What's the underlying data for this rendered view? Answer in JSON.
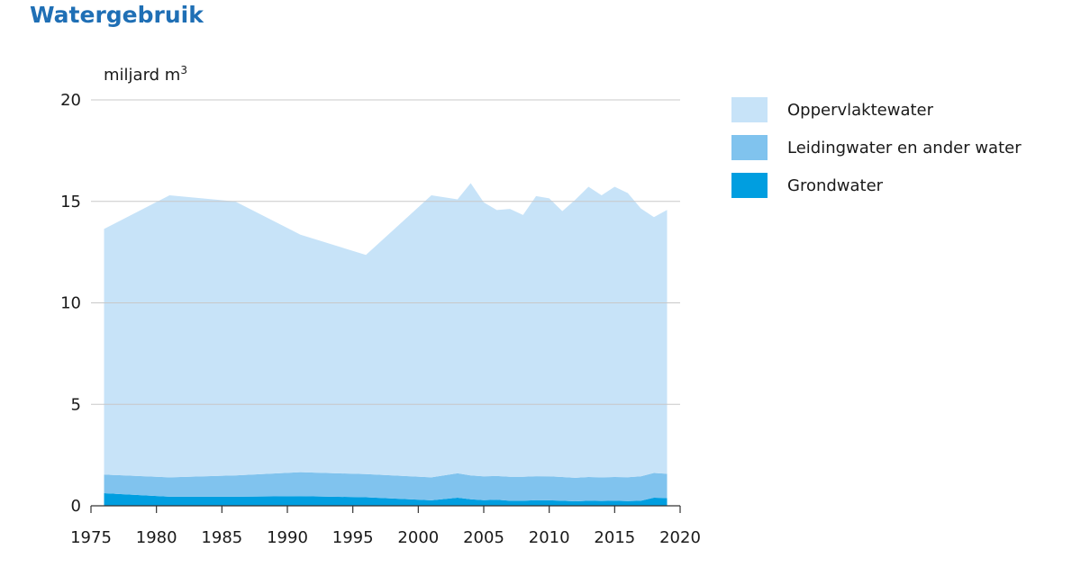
{
  "chart_data": {
    "type": "area",
    "stacked": true,
    "title": "Watergebruik",
    "ylabel": "miljard m",
    "ylabel_sup": "3",
    "xlim": [
      1975,
      2020
    ],
    "ylim": [
      0,
      20
    ],
    "xticks": [
      "1975",
      "1980",
      "1985",
      "1990",
      "1995",
      "2000",
      "2005",
      "2010",
      "2015",
      "2020"
    ],
    "yticks": [
      "0",
      "5",
      "10",
      "15",
      "20"
    ],
    "grid": true,
    "legend_position": "right",
    "x": [
      1976,
      1981,
      1986,
      1991,
      1996,
      2001,
      2003,
      2004,
      2005,
      2006,
      2007,
      2008,
      2009,
      2010,
      2011,
      2012,
      2013,
      2014,
      2015,
      2016,
      2017,
      2018,
      2019
    ],
    "series": [
      {
        "name": "Grondwater",
        "color": "#009ee0",
        "values": [
          0.62,
          0.45,
          0.45,
          0.48,
          0.42,
          0.27,
          0.4,
          0.32,
          0.28,
          0.3,
          0.25,
          0.25,
          0.28,
          0.27,
          0.25,
          0.22,
          0.25,
          0.24,
          0.25,
          0.23,
          0.25,
          0.4,
          0.38
        ]
      },
      {
        "name": "Leidingwater en ander water",
        "color": "#80c3ee",
        "values": [
          0.92,
          0.95,
          1.05,
          1.18,
          1.14,
          1.13,
          1.2,
          1.18,
          1.17,
          1.17,
          1.18,
          1.18,
          1.18,
          1.18,
          1.17,
          1.16,
          1.17,
          1.16,
          1.17,
          1.18,
          1.2,
          1.22,
          1.2
        ]
      },
      {
        "name": "Oppervlaktewater",
        "color": "#c7e3f8",
        "values": [
          12.1,
          13.9,
          13.5,
          11.7,
          10.8,
          13.9,
          13.5,
          14.4,
          13.5,
          13.1,
          13.2,
          12.9,
          13.8,
          13.7,
          13.1,
          13.7,
          14.3,
          13.9,
          14.3,
          14.0,
          13.2,
          12.6,
          13.0
        ]
      }
    ]
  }
}
